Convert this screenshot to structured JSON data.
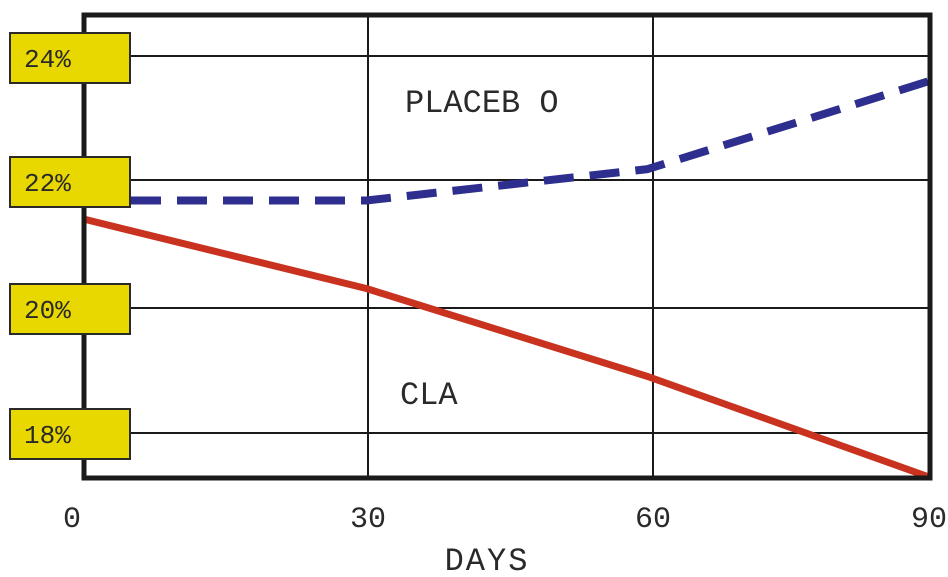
{
  "chart_data": {
    "type": "line",
    "xlabel": "DAYS",
    "x_ticks": [
      0,
      30,
      60,
      90
    ],
    "y_ticks": [
      18,
      20,
      22,
      24
    ],
    "y_tick_labels": [
      "18%",
      "20%",
      "22%",
      "24%"
    ],
    "xlim": [
      0,
      90
    ],
    "ylim": [
      17.2,
      24.7
    ],
    "grid": true,
    "series": [
      {
        "name": "PLACEBO",
        "label_text": "PLACEB O",
        "style": "dashed",
        "color": "#2e2e8f",
        "x": [
          0,
          30,
          60,
          90
        ],
        "y": [
          21.7,
          21.7,
          22.2,
          23.6
        ]
      },
      {
        "name": "CLA",
        "label_text": "CLA",
        "style": "solid",
        "color": "#c8321e",
        "x": [
          0,
          30,
          60,
          90
        ],
        "y": [
          21.4,
          20.3,
          18.9,
          17.3
        ]
      }
    ],
    "badge_color": "#e9d800"
  }
}
